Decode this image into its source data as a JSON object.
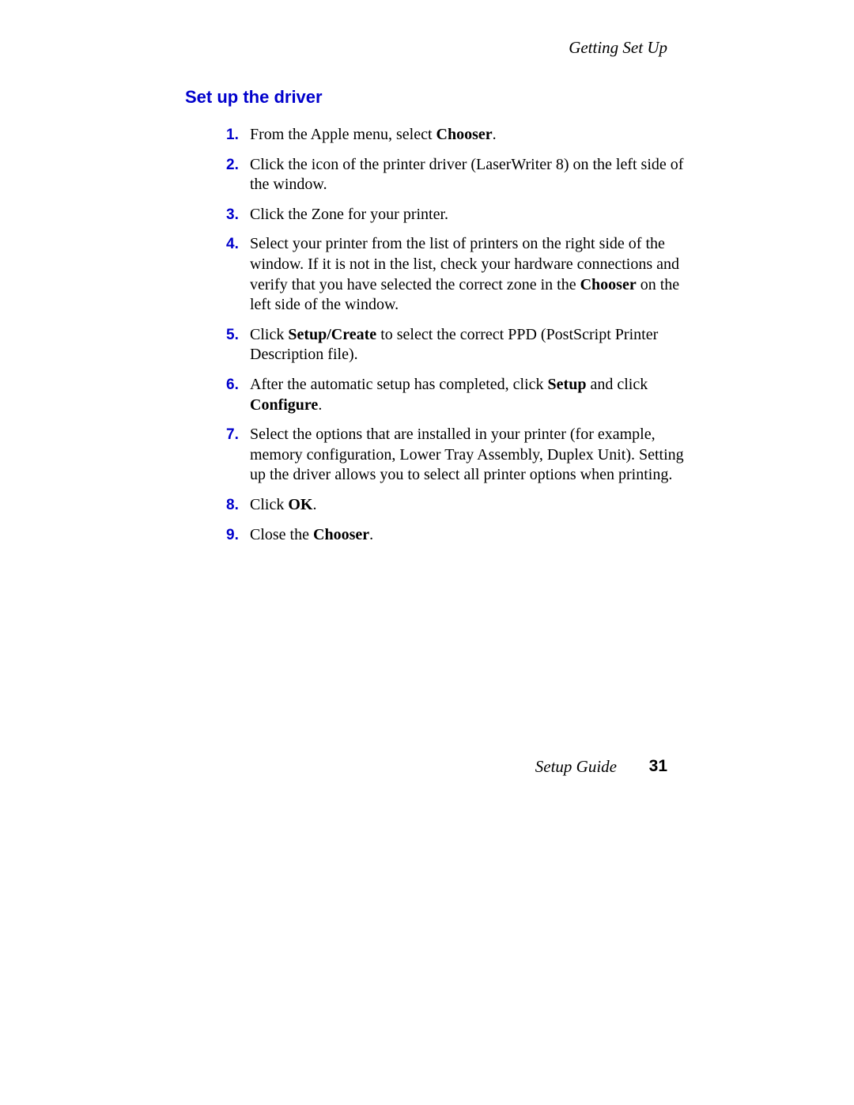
{
  "header": {
    "section": "Getting Set Up"
  },
  "title": "Set up the driver",
  "colors": {
    "accent_blue": "#0000cc",
    "text": "#000000",
    "background": "#ffffff"
  },
  "typography": {
    "body_font": "Palatino",
    "body_size_pt": 15,
    "number_font": "Arial",
    "number_weight": "bold",
    "title_font": "Arial",
    "title_weight": "bold",
    "title_size_pt": 16
  },
  "steps": [
    {
      "n": "1.",
      "segments": [
        {
          "t": "From the Apple menu, select "
        },
        {
          "t": "Chooser",
          "b": true
        },
        {
          "t": "."
        }
      ]
    },
    {
      "n": "2.",
      "segments": [
        {
          "t": "Click the icon of the printer driver (LaserWriter 8) on the left side of the window."
        }
      ]
    },
    {
      "n": "3.",
      "segments": [
        {
          "t": "Click the Zone for your printer."
        }
      ]
    },
    {
      "n": "4.",
      "segments": [
        {
          "t": "Select your printer from the list of printers on the right side of the window.  If it is not in the list, check your hardware connections and verify that you have selected the correct zone in the "
        },
        {
          "t": "Chooser",
          "b": true
        },
        {
          "t": " on the left side of the window."
        }
      ]
    },
    {
      "n": "5.",
      "segments": [
        {
          "t": "Click "
        },
        {
          "t": "Setup/Create",
          "b": true
        },
        {
          "t": " to select the correct PPD (PostScript Printer Description file)."
        }
      ]
    },
    {
      "n": "6.",
      "segments": [
        {
          "t": "After the automatic setup has completed, click "
        },
        {
          "t": "Setup",
          "b": true
        },
        {
          "t": " and click "
        },
        {
          "t": "Configure",
          "b": true
        },
        {
          "t": "."
        }
      ]
    },
    {
      "n": "7.",
      "segments": [
        {
          "t": "Select the options that are installed in your printer (for example, memory configuration, Lower Tray Assembly, Duplex Unit).  Setting up the driver allows you to select all printer options when printing."
        }
      ]
    },
    {
      "n": "8.",
      "segments": [
        {
          "t": "Click "
        },
        {
          "t": "OK",
          "b": true
        },
        {
          "t": "."
        }
      ]
    },
    {
      "n": "9.",
      "segments": [
        {
          "t": "Close the "
        },
        {
          "t": "Chooser",
          "b": true
        },
        {
          "t": "."
        }
      ]
    }
  ],
  "footer": {
    "guide": "Setup Guide",
    "page": "31"
  }
}
